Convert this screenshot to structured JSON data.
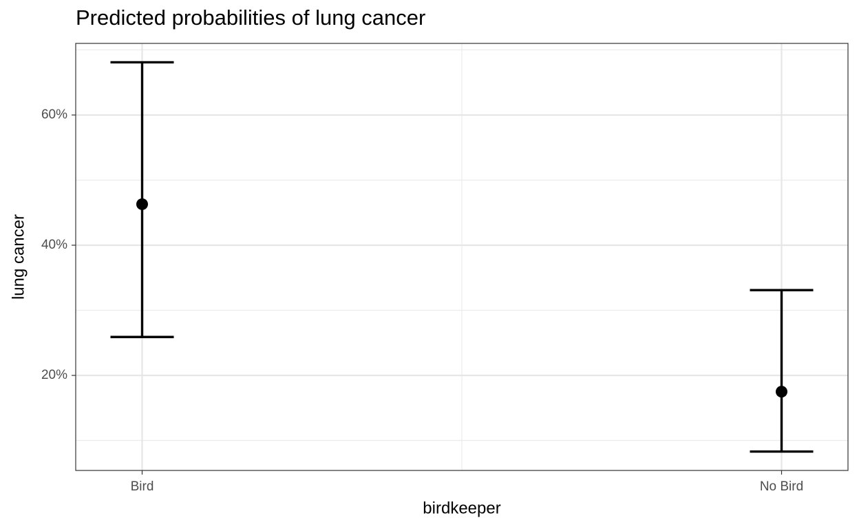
{
  "chart_data": {
    "type": "errorbar",
    "title": "Predicted probabilities of lung cancer",
    "x_label": "birdkeeper",
    "y_label": "lung cancer",
    "categories": [
      "Bird",
      "No Bird"
    ],
    "series": [
      {
        "color": "#000000",
        "values": [
          46.3,
          17.5
        ],
        "lower": [
          25.9,
          8.3
        ],
        "upper": [
          68.1,
          33.1
        ]
      }
    ],
    "ylim": [
      5.4,
      71.0
    ],
    "yticks": [
      {
        "value": 20,
        "label": "20%"
      },
      {
        "value": 40,
        "label": "40%"
      },
      {
        "value": 60,
        "label": "60%"
      }
    ],
    "y_minor_ticks": [
      10,
      30,
      50,
      70
    ],
    "grid": true
  }
}
